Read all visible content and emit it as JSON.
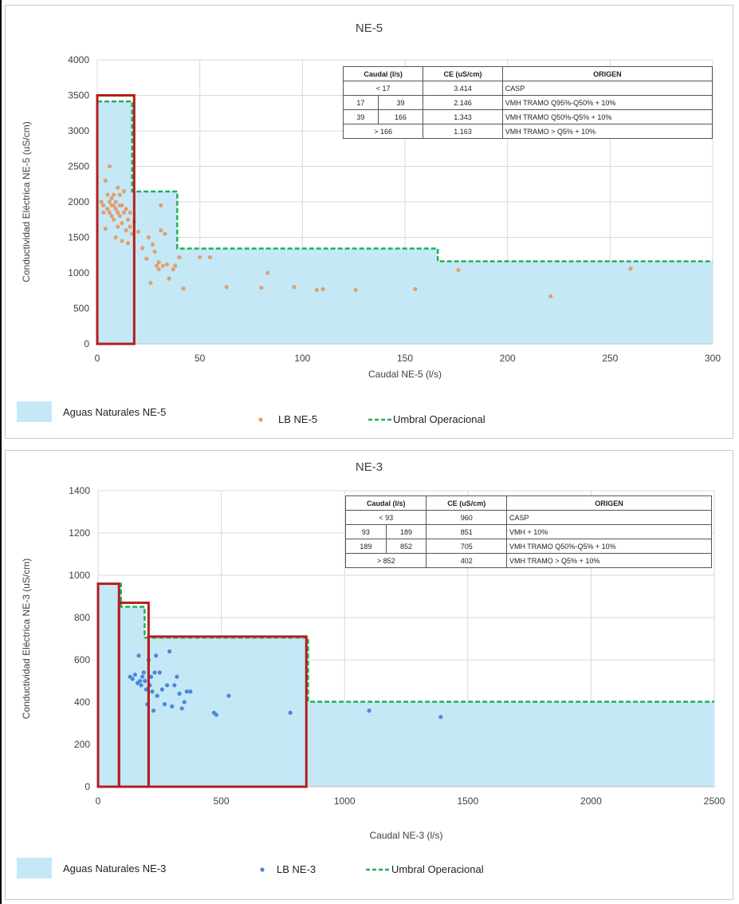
{
  "charts": [
    {
      "id": "top",
      "title": "NE-5",
      "xlabel": "Caudal NE-5 (l/s)",
      "ylabel": "Conductividad Eléctrica NE-5 (uS/cm)",
      "table": {
        "headers": [
          "Caudal (l/s)",
          "CE (uS/cm)",
          "ORIGEN"
        ],
        "rows": [
          {
            "q1": "< 17",
            "q2": "",
            "ce": "3.414",
            "origen": "CASP"
          },
          {
            "q1": "17",
            "q2": "39",
            "ce": "2.146",
            "origen": "VMH TRAMO Q95%-Q50% + 10%"
          },
          {
            "q1": "39",
            "q2": "166",
            "ce": "1.343",
            "origen": "VMH TRAMO Q50%-Q5% + 10%"
          },
          {
            "q1": "> 166",
            "q2": "",
            "ce": "1.163",
            "origen": "VMH TRAMO > Q5% + 10%"
          }
        ]
      },
      "legend": {
        "area": "Aguas Naturales NE-5",
        "points": "LB NE-5",
        "threshold": "Umbral Operacional"
      }
    },
    {
      "id": "bottom",
      "title": "NE-3",
      "xlabel": "Caudal NE-3 (l/s)",
      "ylabel": "Conductividad Eléctrica NE-3 (uS/cm)",
      "table": {
        "headers": [
          "Caudal (l/s)",
          "CE (uS/cm)",
          "ORIGEN"
        ],
        "rows": [
          {
            "q1": "< 93",
            "q2": "",
            "ce": "960",
            "origen": "CASP"
          },
          {
            "q1": "93",
            "q2": "189",
            "ce": "851",
            "origen": "VMH + 10%"
          },
          {
            "q1": "189",
            "q2": "852",
            "ce": "705",
            "origen": "VMH TRAMO Q50%-Q5% + 10%"
          },
          {
            "q1": "> 852",
            "q2": "",
            "ce": "402",
            "origen": "VMH TRAMO > Q5% + 10%"
          }
        ]
      },
      "legend": {
        "area": "Aguas Naturales NE-3",
        "points": "LB NE-3",
        "threshold": "Umbral Operacional"
      }
    }
  ],
  "chart_data": [
    {
      "type": "scatter",
      "title": "NE-5",
      "xlabel": "Caudal NE-5 (l/s)",
      "ylabel": "Conductividad Eléctrica NE-5 (uS/cm)",
      "xlim": [
        0,
        300
      ],
      "ylim": [
        0,
        4000
      ],
      "xticks": [
        0,
        50,
        100,
        150,
        200,
        250,
        300
      ],
      "yticks": [
        0,
        500,
        1000,
        1500,
        2000,
        2500,
        3000,
        3500,
        4000
      ],
      "grid": true,
      "colors": {
        "points": "#e0a070",
        "area": "#c5e8f7",
        "threshold": "#1fb05a",
        "box": "#b41e1e"
      },
      "threshold_steps": [
        {
          "x_from": 0,
          "x_to": 17,
          "y": 3414
        },
        {
          "x_from": 17,
          "x_to": 39,
          "y": 2146
        },
        {
          "x_from": 39,
          "x_to": 166,
          "y": 1343
        },
        {
          "x_from": 166,
          "x_to": 300,
          "y": 1163
        }
      ],
      "highlight_boxes": [
        {
          "x_from": 0,
          "x_to": 18,
          "y_to": 3500
        }
      ],
      "series": [
        {
          "name": "LB NE-5",
          "points": [
            [
              2,
              2000
            ],
            [
              3,
              1850
            ],
            [
              3,
              1950
            ],
            [
              4,
              1620
            ],
            [
              4,
              2300
            ],
            [
              5,
              2100
            ],
            [
              5,
              1900
            ],
            [
              6,
              2500
            ],
            [
              6,
              2000
            ],
            [
              6,
              1850
            ],
            [
              7,
              2050
            ],
            [
              7,
              1950
            ],
            [
              7,
              1800
            ],
            [
              8,
              2100
            ],
            [
              8,
              1950
            ],
            [
              8,
              1750
            ],
            [
              9,
              1900
            ],
            [
              9,
              2000
            ],
            [
              9,
              1500
            ],
            [
              10,
              2200
            ],
            [
              10,
              1850
            ],
            [
              10,
              1650
            ],
            [
              11,
              1950
            ],
            [
              11,
              1800
            ],
            [
              11,
              2100
            ],
            [
              12,
              1450
            ],
            [
              12,
              1700
            ],
            [
              12,
              1950
            ],
            [
              13,
              2150
            ],
            [
              13,
              1850
            ],
            [
              14,
              1600
            ],
            [
              14,
              1900
            ],
            [
              15,
              1750
            ],
            [
              15,
              1420
            ],
            [
              16,
              1850
            ],
            [
              16,
              1650
            ],
            [
              17,
              1550
            ],
            [
              18,
              1720
            ],
            [
              20,
              1580
            ],
            [
              22,
              1350
            ],
            [
              24,
              1200
            ],
            [
              25,
              1500
            ],
            [
              26,
              860
            ],
            [
              27,
              1400
            ],
            [
              28,
              1300
            ],
            [
              29,
              1100
            ],
            [
              30,
              1050
            ],
            [
              30,
              1150
            ],
            [
              31,
              1950
            ],
            [
              31,
              1600
            ],
            [
              32,
              1100
            ],
            [
              33,
              1550
            ],
            [
              34,
              1120
            ],
            [
              35,
              920
            ],
            [
              37,
              1050
            ],
            [
              38,
              1100
            ],
            [
              40,
              1220
            ],
            [
              42,
              780
            ],
            [
              50,
              1220
            ],
            [
              55,
              1220
            ],
            [
              63,
              800
            ],
            [
              80,
              790
            ],
            [
              83,
              1000
            ],
            [
              96,
              800
            ],
            [
              107,
              760
            ],
            [
              110,
              770
            ],
            [
              126,
              760
            ],
            [
              155,
              770
            ],
            [
              176,
              1040
            ],
            [
              221,
              670
            ],
            [
              260,
              1060
            ]
          ]
        }
      ]
    },
    {
      "type": "scatter",
      "title": "NE-3",
      "xlabel": "Caudal NE-3 (l/s)",
      "ylabel": "Conductividad Eléctrica NE-3 (uS/cm)",
      "xlim": [
        0,
        2500
      ],
      "ylim": [
        0,
        1400
      ],
      "xticks": [
        0,
        500,
        1000,
        1500,
        2000,
        2500
      ],
      "yticks": [
        0,
        200,
        400,
        600,
        800,
        1000,
        1200,
        1400
      ],
      "grid": true,
      "colors": {
        "points": "#4a88d8",
        "area": "#c5e8f7",
        "threshold": "#1fb05a",
        "box": "#b41e1e"
      },
      "threshold_steps": [
        {
          "x_from": 0,
          "x_to": 93,
          "y": 960
        },
        {
          "x_from": 93,
          "x_to": 189,
          "y": 851
        },
        {
          "x_from": 189,
          "x_to": 852,
          "y": 705
        },
        {
          "x_from": 852,
          "x_to": 2500,
          "y": 402
        }
      ],
      "highlight_boxes": [
        {
          "x_from": 0,
          "x_to": 85,
          "y_to": 960
        },
        {
          "x_from": 85,
          "x_to": 205,
          "y_to": 870
        },
        {
          "x_from": 205,
          "x_to": 845,
          "y_to": 710
        }
      ],
      "series": [
        {
          "name": "LB NE-3",
          "points": [
            [
              130,
              520
            ],
            [
              140,
              510
            ],
            [
              150,
              530
            ],
            [
              160,
              490
            ],
            [
              165,
              620
            ],
            [
              170,
              500
            ],
            [
              175,
              480
            ],
            [
              180,
              520
            ],
            [
              185,
              540
            ],
            [
              190,
              500
            ],
            [
              195,
              460
            ],
            [
              200,
              390
            ],
            [
              205,
              600
            ],
            [
              210,
              480
            ],
            [
              215,
              520
            ],
            [
              220,
              450
            ],
            [
              225,
              360
            ],
            [
              230,
              540
            ],
            [
              235,
              620
            ],
            [
              240,
              430
            ],
            [
              250,
              540
            ],
            [
              260,
              460
            ],
            [
              270,
              390
            ],
            [
              280,
              480
            ],
            [
              290,
              640
            ],
            [
              300,
              380
            ],
            [
              310,
              480
            ],
            [
              320,
              520
            ],
            [
              330,
              440
            ],
            [
              340,
              370
            ],
            [
              350,
              400
            ],
            [
              360,
              450
            ],
            [
              375,
              450
            ],
            [
              470,
              350
            ],
            [
              480,
              340
            ],
            [
              530,
              430
            ],
            [
              780,
              350
            ],
            [
              1100,
              360
            ],
            [
              1390,
              330
            ]
          ]
        }
      ]
    }
  ]
}
